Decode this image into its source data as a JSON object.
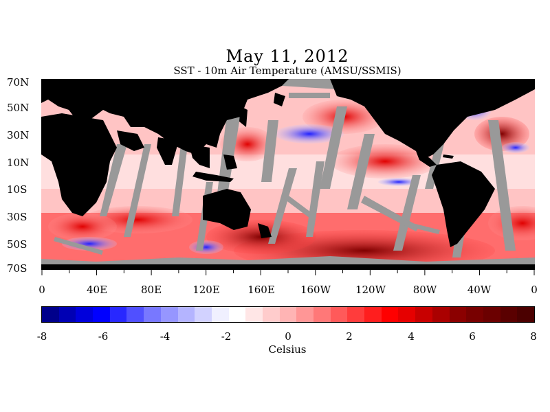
{
  "title": "May 11, 2012",
  "subtitle": "SST - 10m Air Temperature (AMSU/SSMIS)",
  "lat_labels": [
    "70N",
    "50N",
    "30N",
    "10N",
    "10S",
    "30S",
    "50S",
    "70S"
  ],
  "lon_labels": [
    "0",
    "40E",
    "80E",
    "120E",
    "160E",
    "160W",
    "120W",
    "80W",
    "40W",
    "0"
  ],
  "colorbar": {
    "ticks": [
      "-8",
      "-6",
      "-4",
      "-2",
      "0",
      "2",
      "4",
      "6",
      "8"
    ],
    "units": "Celsius",
    "colors": [
      "#00008b",
      "#0000b4",
      "#0000dc",
      "#0000ff",
      "#2828ff",
      "#5050ff",
      "#7878ff",
      "#9696ff",
      "#b4b4ff",
      "#d2d2ff",
      "#f0f0ff",
      "#ffffff",
      "#ffe6e6",
      "#ffcccc",
      "#ffb4b4",
      "#ff9696",
      "#ff7878",
      "#ff5a5a",
      "#ff3c3c",
      "#ff1e1e",
      "#ff0000",
      "#e60000",
      "#c80000",
      "#aa0000",
      "#8b0000",
      "#780000",
      "#6b0000",
      "#5a0000",
      "#4b0000"
    ]
  },
  "legend_colors": {
    "land": "#000000",
    "no_data": "#999999"
  }
}
